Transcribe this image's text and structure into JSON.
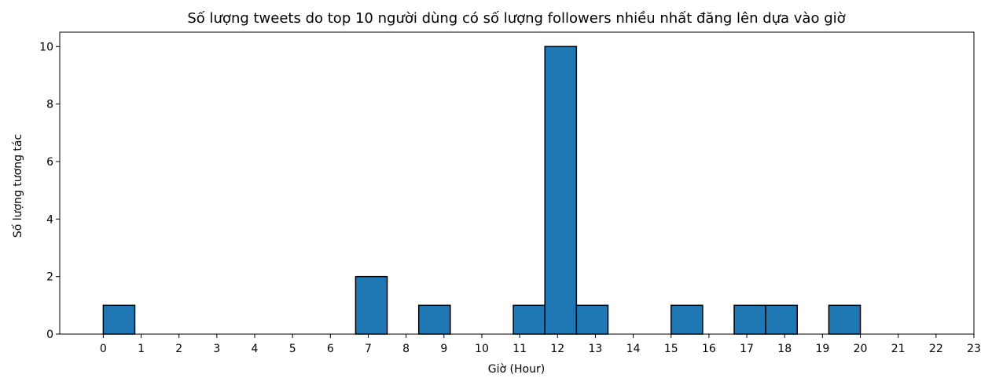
{
  "chart_data": {
    "type": "histogram",
    "title": "Số lượng tweets do top 10 người dùng có số lượng followers nhiều nhất đăng lên dựa vào giờ",
    "xlabel": "Giờ (Hour)",
    "ylabel": "Số lượng tương tác",
    "xlim": [
      -1.15,
      23
    ],
    "ylim": [
      0,
      10.5
    ],
    "x_ticks": [
      0,
      1,
      2,
      3,
      4,
      5,
      6,
      7,
      8,
      9,
      10,
      11,
      12,
      13,
      14,
      15,
      16,
      17,
      18,
      19,
      20,
      21,
      22,
      23
    ],
    "y_ticks": [
      0,
      2,
      4,
      6,
      8,
      10
    ],
    "bins": [
      {
        "start": 0.0,
        "end": 0.8333,
        "count": 1
      },
      {
        "start": 0.8333,
        "end": 1.6667,
        "count": 0
      },
      {
        "start": 1.6667,
        "end": 2.5,
        "count": 0
      },
      {
        "start": 2.5,
        "end": 3.3333,
        "count": 0
      },
      {
        "start": 3.3333,
        "end": 4.1667,
        "count": 0
      },
      {
        "start": 4.1667,
        "end": 5.0,
        "count": 0
      },
      {
        "start": 5.0,
        "end": 5.8333,
        "count": 0
      },
      {
        "start": 5.8333,
        "end": 6.6667,
        "count": 0
      },
      {
        "start": 6.6667,
        "end": 7.5,
        "count": 2
      },
      {
        "start": 7.5,
        "end": 8.3333,
        "count": 0
      },
      {
        "start": 8.3333,
        "end": 9.1667,
        "count": 1
      },
      {
        "start": 9.1667,
        "end": 10.0,
        "count": 0
      },
      {
        "start": 10.0,
        "end": 10.8333,
        "count": 0
      },
      {
        "start": 10.8333,
        "end": 11.6667,
        "count": 1
      },
      {
        "start": 11.6667,
        "end": 12.5,
        "count": 10
      },
      {
        "start": 12.5,
        "end": 13.3333,
        "count": 1
      },
      {
        "start": 13.3333,
        "end": 14.1667,
        "count": 0
      },
      {
        "start": 14.1667,
        "end": 15.0,
        "count": 0
      },
      {
        "start": 15.0,
        "end": 15.8333,
        "count": 1
      },
      {
        "start": 15.8333,
        "end": 16.6667,
        "count": 0
      },
      {
        "start": 16.6667,
        "end": 17.5,
        "count": 1
      },
      {
        "start": 17.5,
        "end": 18.3333,
        "count": 1
      },
      {
        "start": 18.3333,
        "end": 19.1667,
        "count": 0
      },
      {
        "start": 19.1667,
        "end": 20.0,
        "count": 1
      }
    ],
    "bar_color": "#1f77b4",
    "edge_color": "#000000",
    "grid": false,
    "legend": "none"
  }
}
